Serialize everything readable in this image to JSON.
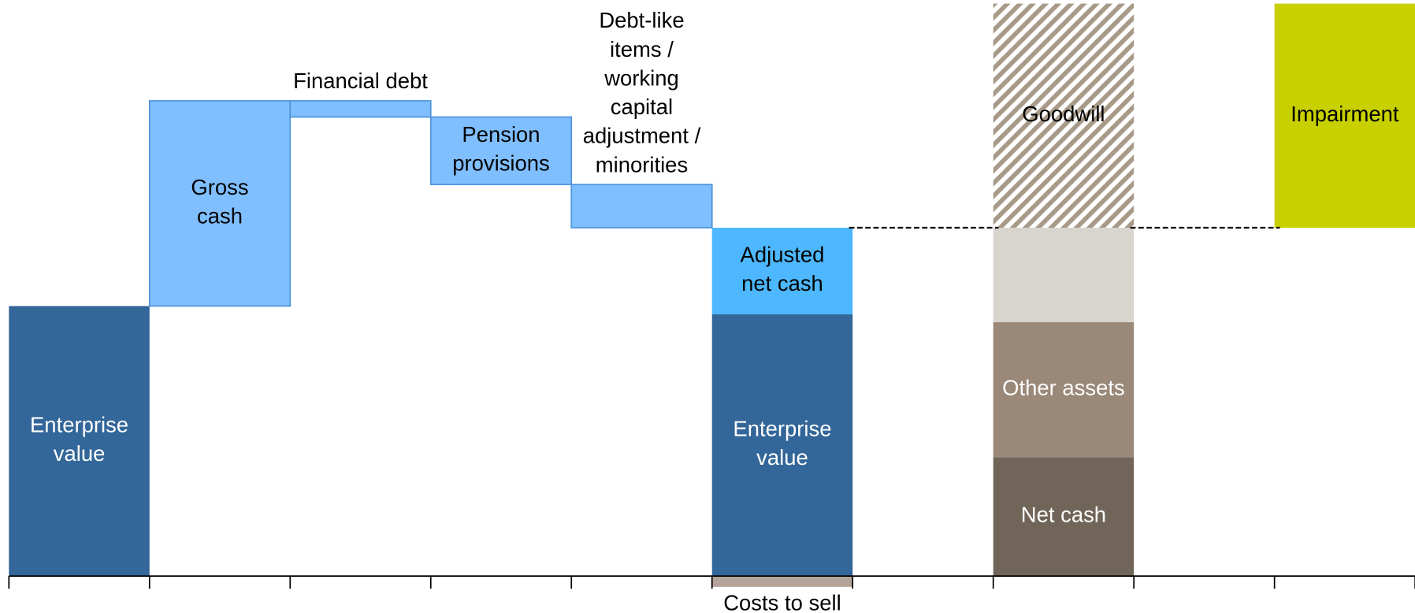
{
  "chart_data": {
    "type": "waterfall",
    "ylim": [
      -2.5,
      106
    ],
    "columns": [
      {
        "mode": "delta",
        "segments": [
          {
            "name": "Enterprise\nvalue",
            "value": 50,
            "color": "#336699",
            "text_color": "#ffffff"
          }
        ]
      },
      {
        "mode": "delta",
        "segments": [
          {
            "name": "Gross\ncash",
            "value": 38,
            "color": "#80bfff",
            "border": "#4d94db",
            "text_color": "#000000"
          }
        ]
      },
      {
        "mode": "delta",
        "segments": [
          {
            "name": "Financial debt",
            "value": -3,
            "color": "#80bfff",
            "border": "#4d94db",
            "text_color": "#000000"
          }
        ]
      },
      {
        "mode": "delta",
        "segments": [
          {
            "name": "Pension\nprovisions",
            "value": -12.5,
            "color": "#80bfff",
            "border": "#4d94db",
            "text_color": "#000000"
          }
        ]
      },
      {
        "mode": "delta",
        "segments": [
          {
            "name": "Debt-like\nitems /\nworking\ncapital\nadjustment /\nminorities",
            "value": -8,
            "color": "#80bfff",
            "border": "#4d94db",
            "text_color": "#000000"
          }
        ]
      },
      {
        "mode": "stack",
        "segments": [
          {
            "name": "Costs to sell",
            "value": -2,
            "color": "#b3a398",
            "text_color": "#000000"
          },
          {
            "name": "Enterprise\nvalue",
            "value": 48.5,
            "color": "#336699",
            "text_color": "#ffffff"
          },
          {
            "name": "Adjusted\nnet cash",
            "value": 16,
            "color": "#4db8ff",
            "text_color": "#000000"
          }
        ]
      },
      {
        "mode": "stack",
        "segments": []
      },
      {
        "mode": "stack",
        "segments": [
          {
            "name": "Net cash",
            "value": 22,
            "color": "#706558",
            "text_color": "#ffffff"
          },
          {
            "name": "Other assets",
            "value": 25,
            "color": "#9a8878",
            "text_color": "#ffffff"
          },
          {
            "name": null,
            "value": 17.5,
            "color": "#d8d4ce"
          },
          {
            "name": "Goodwill",
            "value": 41.5,
            "color": "#a89a88",
            "hatch": true,
            "text_color": "#000000"
          }
        ]
      },
      {
        "mode": "stack",
        "segments": []
      },
      {
        "mode": "delta",
        "segments": [
          {
            "name": "Impairment",
            "value": -41.5,
            "color": "#c8d000",
            "text_color": "#000000"
          }
        ]
      }
    ]
  }
}
